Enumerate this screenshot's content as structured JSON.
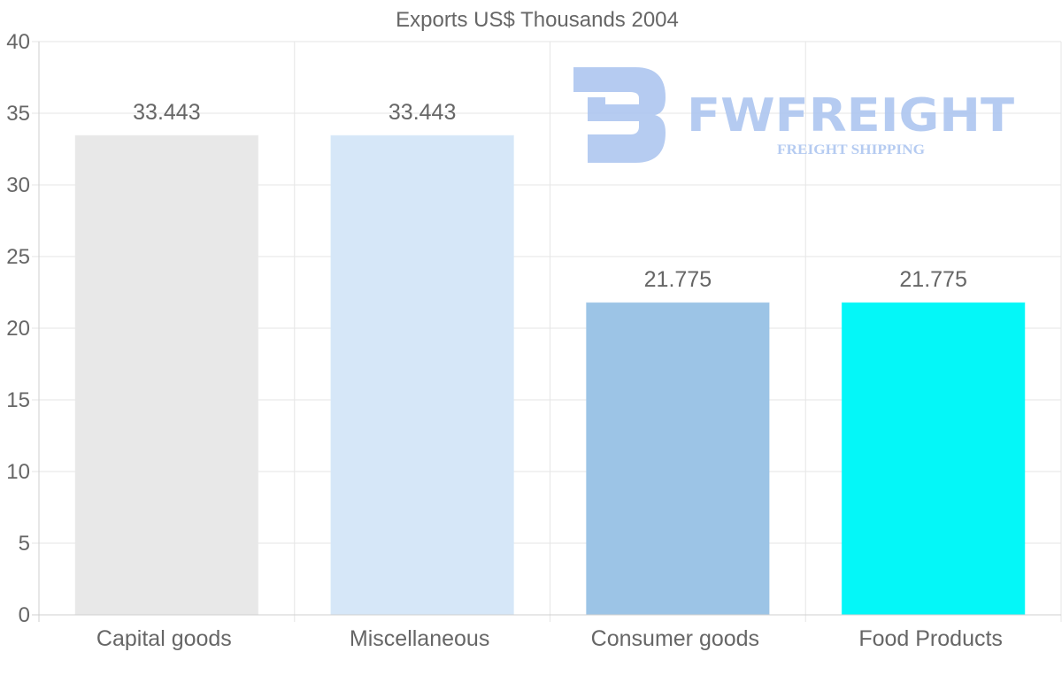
{
  "chart_data": {
    "type": "bar",
    "title": "Exports US$ Thousands 2004",
    "categories": [
      "Capital goods",
      "Miscellaneous",
      "Consumer goods",
      "Food Products"
    ],
    "values": [
      33.443,
      33.443,
      21.775,
      21.775
    ],
    "value_labels": [
      "33.443",
      "33.443",
      "21.775",
      "21.775"
    ],
    "colors": [
      "#e8e8e8",
      "#d6e7f8",
      "#9cc4e6",
      "#04f7f8"
    ],
    "ylim": [
      0,
      40
    ],
    "yticks": [
      0,
      5,
      10,
      15,
      20,
      25,
      30,
      35,
      40
    ],
    "xlabel": "",
    "ylabel": "",
    "grid": true
  },
  "watermark": {
    "brand": "FWFREIGHT",
    "tagline": "FREIGHT SHIPPING",
    "color": "#a9c3ef"
  }
}
